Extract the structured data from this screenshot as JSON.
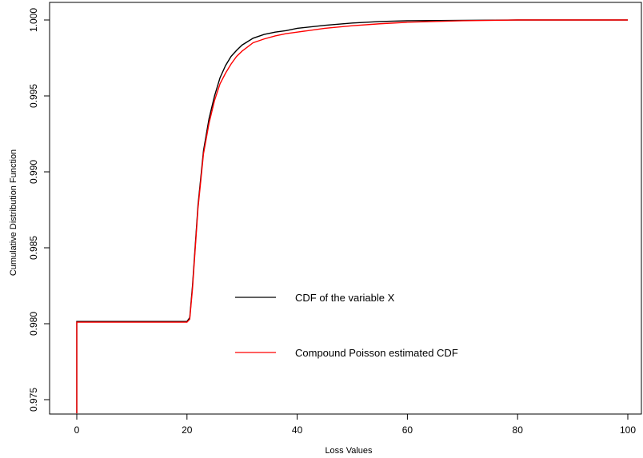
{
  "chart_data": {
    "type": "line",
    "title": "",
    "xlabel": "Loss Values",
    "ylabel": "Cumulative Distribution Function",
    "xlim": [
      0,
      100
    ],
    "ylim": [
      0.9741,
      1.0006
    ],
    "x_ticks": [
      0,
      20,
      40,
      60,
      80,
      100
    ],
    "x_tick_labels": [
      "0",
      "20",
      "40",
      "60",
      "80",
      "100"
    ],
    "y_ticks": [
      0.975,
      0.98,
      0.985,
      0.99,
      0.995,
      1.0
    ],
    "y_tick_labels": [
      "0.975",
      "0.980",
      "0.985",
      "0.990",
      "0.995",
      "1.000"
    ],
    "grid": false,
    "legend_position": "center",
    "series": [
      {
        "name": "CDF of the variable X",
        "color": "#000000",
        "points": [
          [
            0,
            0.9741
          ],
          [
            0,
            0.98015
          ],
          [
            20,
            0.98015
          ],
          [
            20.5,
            0.9804
          ],
          [
            21,
            0.9825
          ],
          [
            22,
            0.9878
          ],
          [
            23,
            0.9914
          ],
          [
            24,
            0.9935
          ],
          [
            25,
            0.995
          ],
          [
            26,
            0.9962
          ],
          [
            27,
            0.997
          ],
          [
            28,
            0.9976
          ],
          [
            29,
            0.998
          ],
          [
            30,
            0.99835
          ],
          [
            32,
            0.9988
          ],
          [
            34,
            0.99905
          ],
          [
            36,
            0.9992
          ],
          [
            38,
            0.9993
          ],
          [
            40,
            0.99945
          ],
          [
            45,
            0.99965
          ],
          [
            50,
            0.9998
          ],
          [
            55,
            0.9999
          ],
          [
            60,
            0.99995
          ],
          [
            80,
            1.0
          ],
          [
            100,
            1.0
          ]
        ]
      },
      {
        "name": "Compound Poisson estimated CDF",
        "color": "#ff0000",
        "points": [
          [
            0,
            0.9741
          ],
          [
            0,
            0.9801
          ],
          [
            20,
            0.9801
          ],
          [
            20.5,
            0.9803
          ],
          [
            21,
            0.9823
          ],
          [
            22,
            0.9876
          ],
          [
            23,
            0.9912
          ],
          [
            24,
            0.9932
          ],
          [
            25,
            0.9947
          ],
          [
            26,
            0.9958
          ],
          [
            27,
            0.9965
          ],
          [
            28,
            0.9971
          ],
          [
            29,
            0.9976
          ],
          [
            30,
            0.99795
          ],
          [
            32,
            0.9985
          ],
          [
            34,
            0.99875
          ],
          [
            36,
            0.99895
          ],
          [
            38,
            0.9991
          ],
          [
            40,
            0.9992
          ],
          [
            45,
            0.99945
          ],
          [
            50,
            0.99962
          ],
          [
            55,
            0.99975
          ],
          [
            60,
            0.99985
          ],
          [
            70,
            0.99995
          ],
          [
            80,
            1.0
          ],
          [
            100,
            1.0
          ]
        ]
      }
    ]
  }
}
